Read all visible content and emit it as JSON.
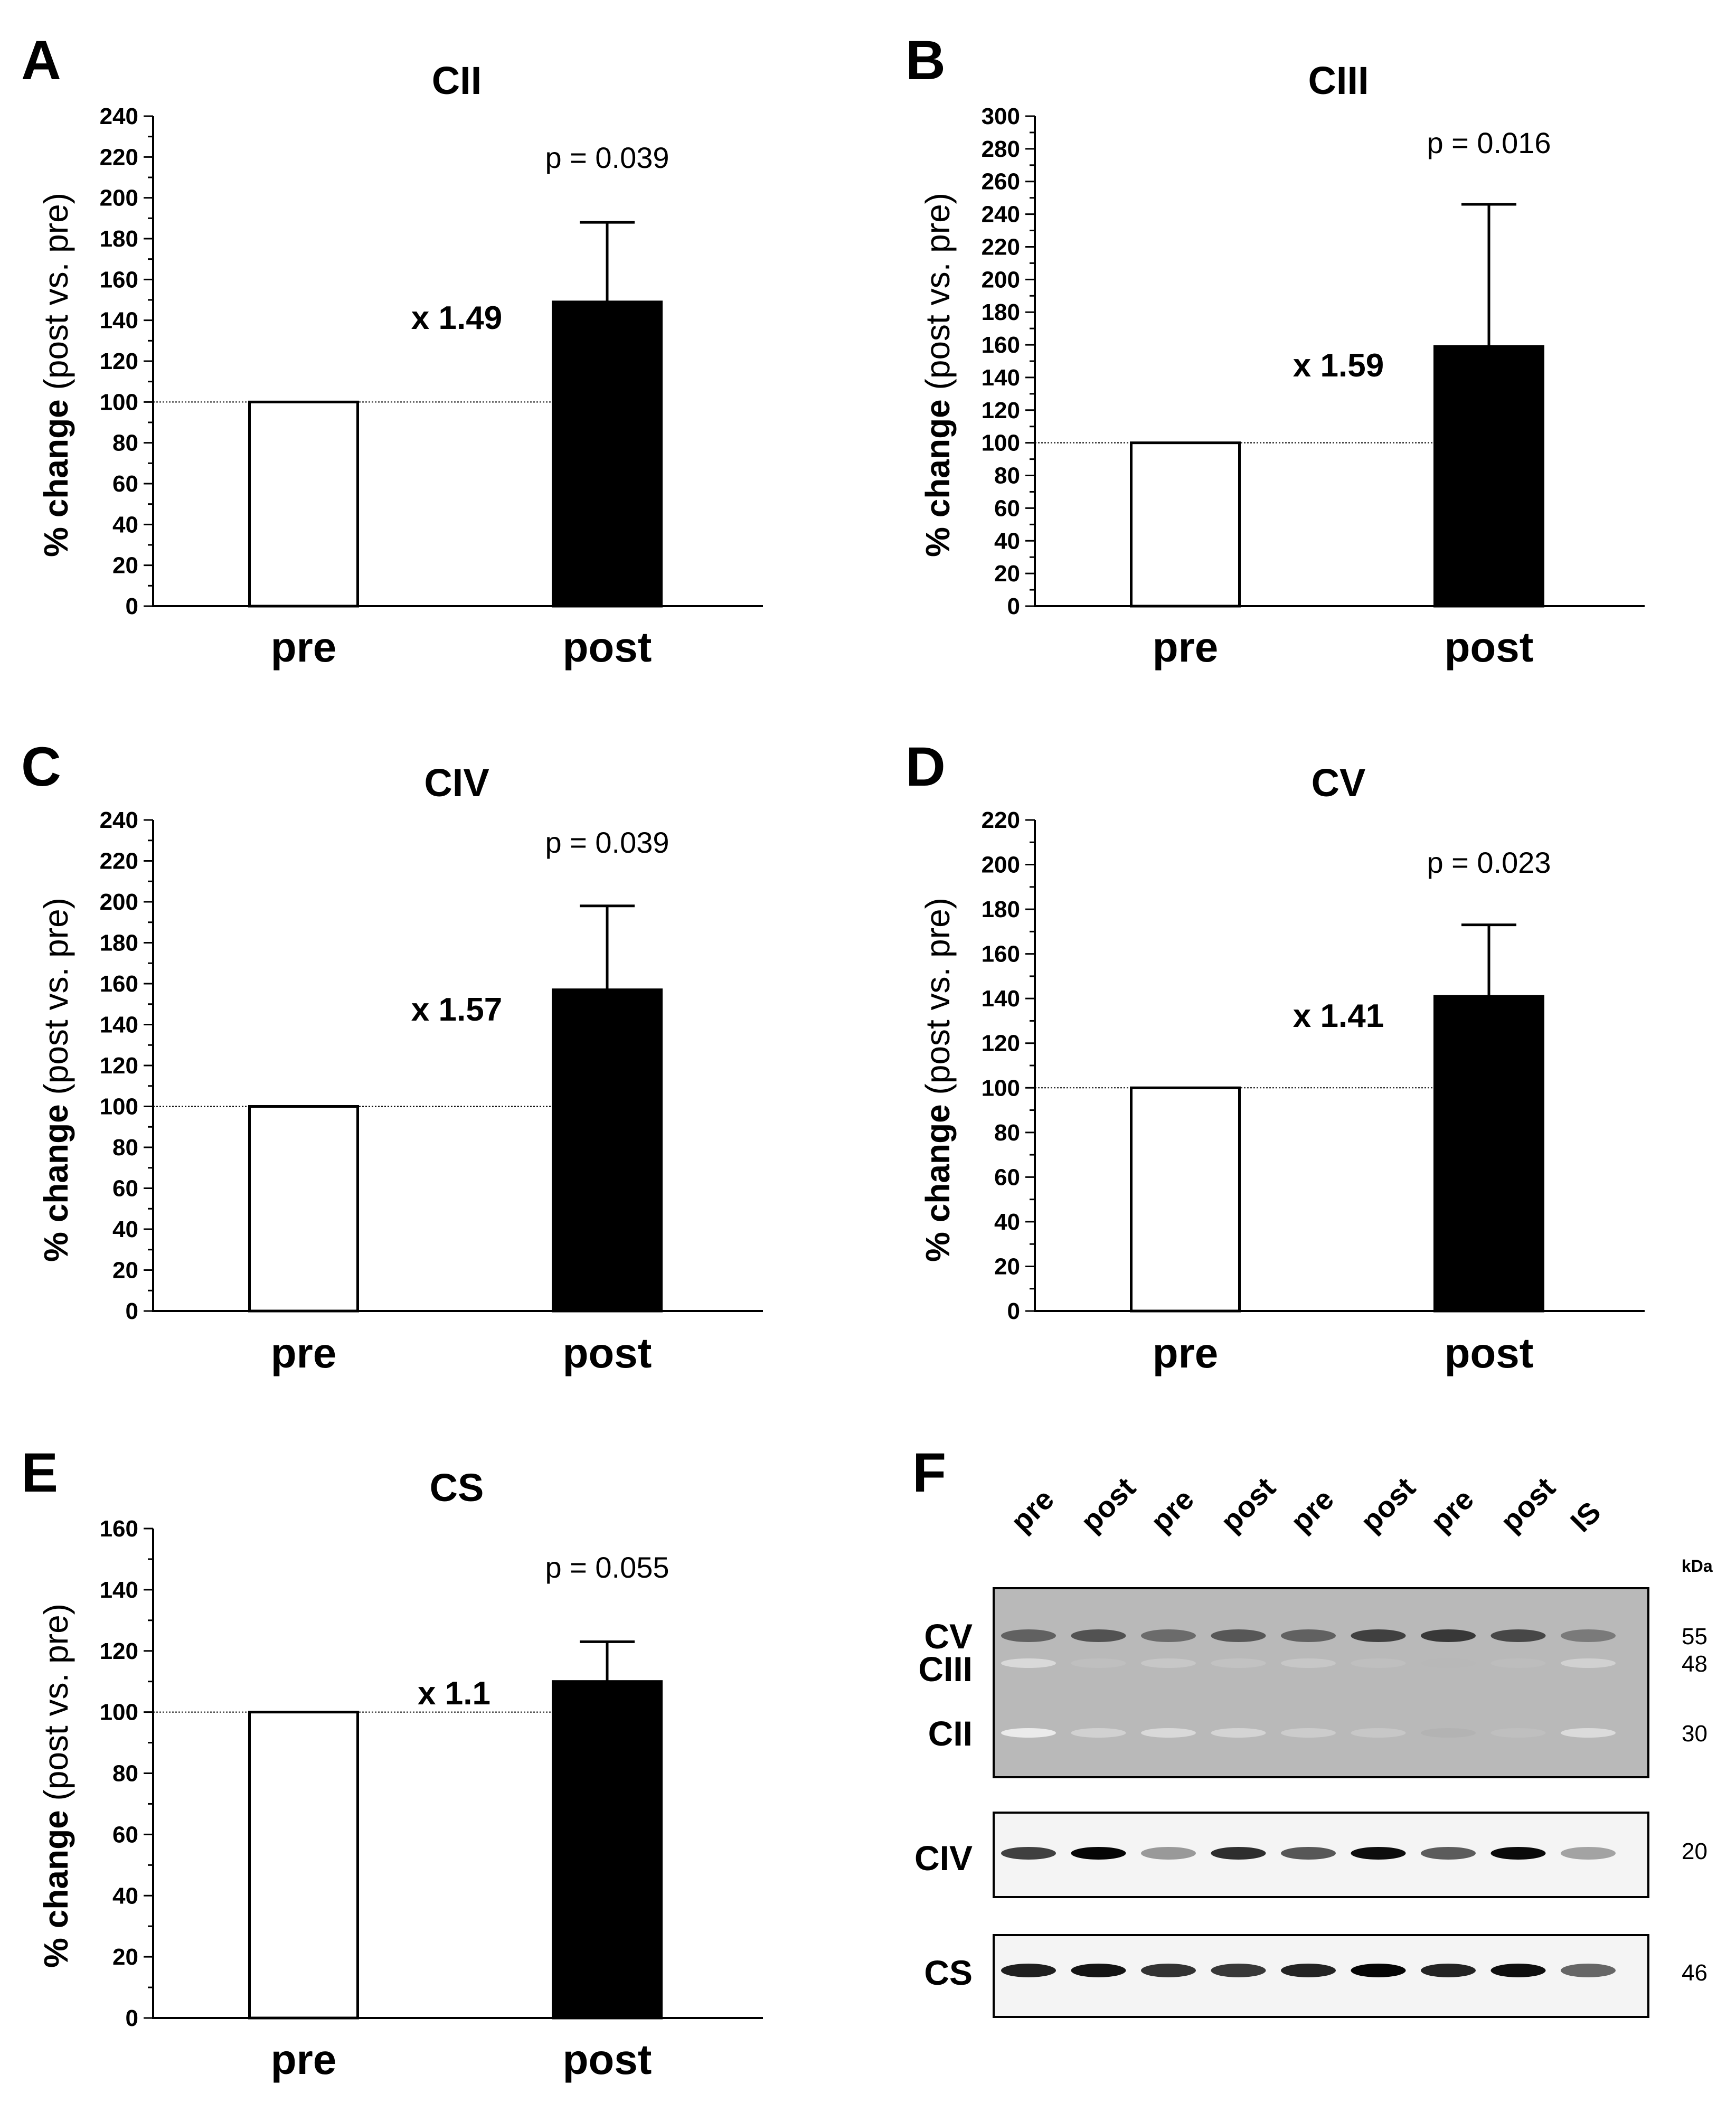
{
  "chart_data": [
    {
      "panel": "A",
      "type": "bar",
      "title": "CII",
      "categories": [
        "pre",
        "post"
      ],
      "values": [
        100,
        149
      ],
      "error_upper": [
        0,
        39
      ],
      "ylabel_bold": "% change",
      "ylabel_rest": " (post vs. pre)",
      "ylim": [
        0,
        240
      ],
      "major_step": 20,
      "minor_step": 10,
      "reference_line": 100,
      "fold_change": "x 1.49",
      "p_value": "p = 0.039"
    },
    {
      "panel": "B",
      "type": "bar",
      "title": "CIII",
      "categories": [
        "pre",
        "post"
      ],
      "values": [
        100,
        159
      ],
      "error_upper": [
        0,
        87
      ],
      "ylabel_bold": "% change",
      "ylabel_rest": " (post vs. pre)",
      "ylim": [
        0,
        300
      ],
      "major_step": 20,
      "minor_step": 10,
      "reference_line": 100,
      "fold_change": "x 1.59",
      "p_value": "p = 0.016"
    },
    {
      "panel": "C",
      "type": "bar",
      "title": "CIV",
      "categories": [
        "pre",
        "post"
      ],
      "values": [
        100,
        157
      ],
      "error_upper": [
        0,
        41
      ],
      "ylabel_bold": "% change",
      "ylabel_rest": " (post vs. pre)",
      "ylim": [
        0,
        240
      ],
      "major_step": 20,
      "minor_step": 10,
      "reference_line": 100,
      "fold_change": "x 1.57",
      "p_value": "p = 0.039"
    },
    {
      "panel": "D",
      "type": "bar",
      "title": "CV",
      "categories": [
        "pre",
        "post"
      ],
      "values": [
        100,
        141
      ],
      "error_upper": [
        0,
        32
      ],
      "ylabel_bold": "% change",
      "ylabel_rest": " (post vs. pre)",
      "ylim": [
        0,
        220
      ],
      "major_step": 20,
      "minor_step": 10,
      "reference_line": 100,
      "fold_change": "x 1.41",
      "p_value": "p = 0.023"
    },
    {
      "panel": "E",
      "type": "bar",
      "title": "CS",
      "categories": [
        "pre",
        "post"
      ],
      "values": [
        100,
        110
      ],
      "error_upper": [
        0,
        13
      ],
      "ylabel_bold": "% change",
      "ylabel_rest": " (post vs. pre)",
      "ylim": [
        0,
        160
      ],
      "major_step": 20,
      "minor_step": 10,
      "reference_line": 100,
      "fold_change": "x 1.1",
      "p_value": "p = 0.055"
    }
  ],
  "western_blot": {
    "panel": "F",
    "lanes": [
      "pre",
      "post",
      "pre",
      "post",
      "pre",
      "post",
      "pre",
      "post",
      "IS"
    ],
    "kda_header": "kDa",
    "blots": [
      {
        "bands": [
          {
            "label": "CV",
            "kda": "55",
            "intensity": [
              0.62,
              0.68,
              0.58,
              0.66,
              0.62,
              0.75,
              0.78,
              0.72,
              0.52
            ]
          },
          {
            "label": "CIII",
            "kda": "48",
            "intensity": [
              0.15,
              0.25,
              0.22,
              0.24,
              0.22,
              0.25,
              0.28,
              0.26,
              0.18
            ]
          },
          {
            "label": "CII",
            "kda": "30",
            "intensity": [
              0.08,
              0.18,
              0.15,
              0.17,
              0.2,
              0.22,
              0.3,
              0.25,
              0.14
            ]
          }
        ]
      },
      {
        "bands": [
          {
            "label": "CIV",
            "kda": "20",
            "intensity": [
              0.75,
              0.98,
              0.4,
              0.82,
              0.66,
              0.95,
              0.64,
              0.96,
              0.36
            ]
          }
        ]
      },
      {
        "bands": [
          {
            "label": "CS",
            "kda": "46",
            "intensity": [
              0.88,
              0.92,
              0.8,
              0.78,
              0.86,
              0.98,
              0.86,
              0.94,
              0.6
            ]
          }
        ]
      }
    ]
  }
}
